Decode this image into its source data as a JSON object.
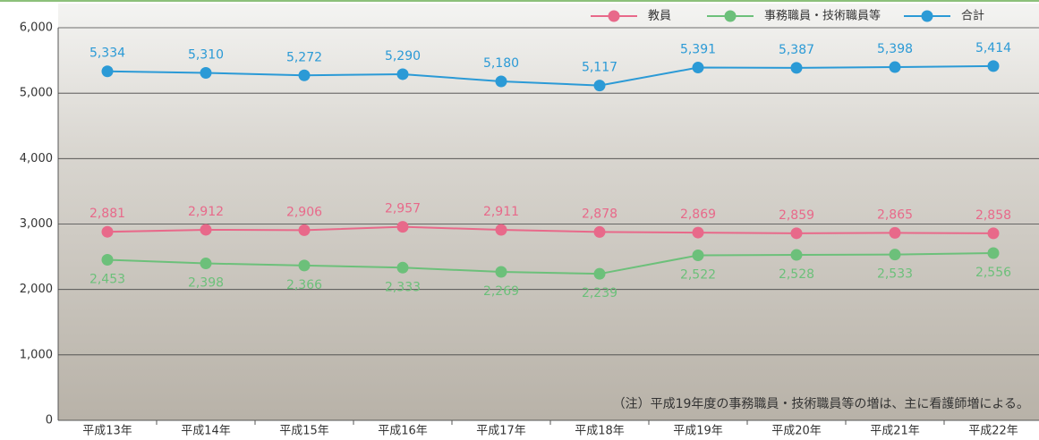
{
  "chart_data": {
    "type": "line",
    "categories": [
      "平成13年",
      "平成14年",
      "平成15年",
      "平成16年",
      "平成17年",
      "平成18年",
      "平成19年",
      "平成20年",
      "平成21年",
      "平成22年"
    ],
    "series": [
      {
        "name": "教員",
        "color": "#e8698a",
        "values": [
          2881,
          2912,
          2906,
          2957,
          2911,
          2878,
          2869,
          2859,
          2865,
          2858
        ],
        "value_labels": [
          "2,881",
          "2,912",
          "2,906",
          "2,957",
          "2,911",
          "2,878",
          "2,869",
          "2,859",
          "2,865",
          "2,858"
        ]
      },
      {
        "name": "事務職員・技術職員等",
        "color": "#6cc07a",
        "values": [
          2453,
          2398,
          2366,
          2333,
          2269,
          2239,
          2522,
          2528,
          2533,
          2556
        ],
        "value_labels": [
          "2,453",
          "2,398",
          "2,366",
          "2,333",
          "2,269",
          "2,239",
          "2,522",
          "2,528",
          "2,533",
          "2,556"
        ]
      },
      {
        "name": "合計",
        "color": "#2b9ad6",
        "values": [
          5334,
          5310,
          5272,
          5290,
          5180,
          5117,
          5391,
          5387,
          5398,
          5414
        ],
        "value_labels": [
          "5,334",
          "5,310",
          "5,272",
          "5,290",
          "5,180",
          "5,117",
          "5,391",
          "5,387",
          "5,398",
          "5,414"
        ]
      }
    ],
    "ylim": [
      0,
      6000
    ],
    "yticks": [
      0,
      {
        "value": 1000,
        "label": "1,000"
      },
      {
        "value": 2000,
        "label": "2,000"
      },
      {
        "value": 3000,
        "label": "3,000"
      },
      {
        "value": 4000,
        "label": "4,000"
      },
      {
        "value": 5000,
        "label": "5,000"
      },
      {
        "value": 6000,
        "label": "6,000"
      }
    ],
    "grid": true,
    "annotation": "（注）平成19年度の事務職員・技術職員等の増は、主に看護師増による。"
  }
}
